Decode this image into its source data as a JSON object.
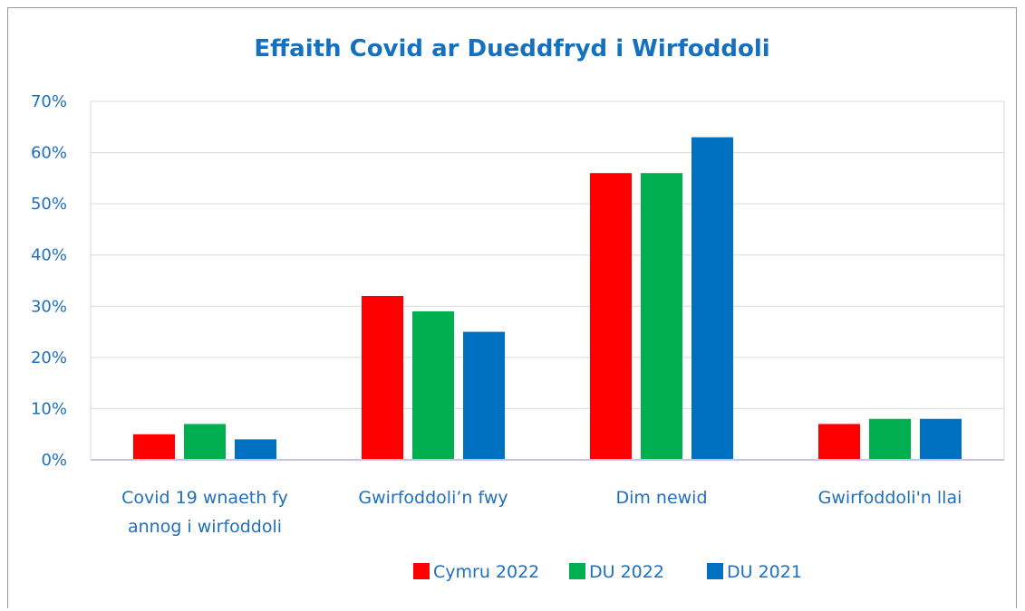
{
  "chart_data": {
    "type": "bar",
    "title": "Effaith Covid ar Dueddfryd i Wirfoddoli",
    "xlabel": "",
    "ylabel": "",
    "ylim": [
      0,
      0.7
    ],
    "yticks": [
      "0%",
      "10%",
      "20%",
      "30%",
      "40%",
      "50%",
      "60%",
      "70%"
    ],
    "categories": [
      [
        "Covid 19 wnaeth fy",
        "annog i wirfoddoli"
      ],
      [
        "Gwirfoddoli’n fwy"
      ],
      [
        "Dim newid"
      ],
      [
        "Gwirfoddoli'n llai"
      ]
    ],
    "series": [
      {
        "name": "Cymru 2022",
        "color": "#ff0000",
        "values": [
          0.05,
          0.32,
          0.56,
          0.07
        ]
      },
      {
        "name": "DU 2022",
        "color": "#00b050",
        "values": [
          0.07,
          0.29,
          0.56,
          0.08
        ]
      },
      {
        "name": "DU 2021",
        "color": "#0070c0",
        "values": [
          0.04,
          0.25,
          0.63,
          0.08
        ]
      }
    ],
    "grid": true,
    "legend_position": "bottom"
  }
}
